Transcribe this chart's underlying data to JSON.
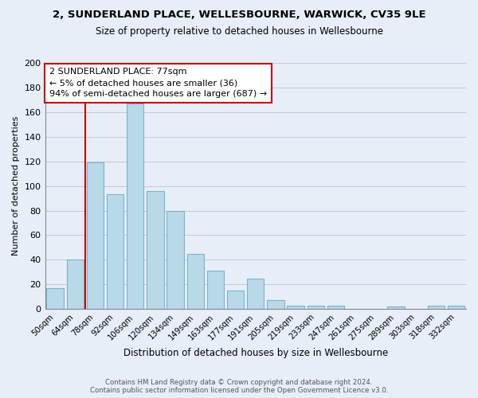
{
  "title": "2, SUNDERLAND PLACE, WELLESBOURNE, WARWICK, CV35 9LE",
  "subtitle": "Size of property relative to detached houses in Wellesbourne",
  "xlabel": "Distribution of detached houses by size in Wellesbourne",
  "ylabel": "Number of detached properties",
  "footer_line1": "Contains HM Land Registry data © Crown copyright and database right 2024.",
  "footer_line2": "Contains public sector information licensed under the Open Government Licence v3.0.",
  "bar_labels": [
    "50sqm",
    "64sqm",
    "78sqm",
    "92sqm",
    "106sqm",
    "120sqm",
    "134sqm",
    "149sqm",
    "163sqm",
    "177sqm",
    "191sqm",
    "205sqm",
    "219sqm",
    "233sqm",
    "247sqm",
    "261sqm",
    "275sqm",
    "289sqm",
    "303sqm",
    "318sqm",
    "332sqm"
  ],
  "bar_values": [
    17,
    40,
    119,
    93,
    167,
    96,
    80,
    45,
    31,
    15,
    25,
    7,
    3,
    3,
    3,
    0,
    0,
    2,
    0,
    3,
    3
  ],
  "bar_color": "#b8d9e8",
  "bar_edge_color": "#7ab4cc",
  "highlight_bar_index": 2,
  "vline_color": "#cc0000",
  "annotation_title": "2 SUNDERLAND PLACE: 77sqm",
  "annotation_line1": "← 5% of detached houses are smaller (36)",
  "annotation_line2": "94% of semi-detached houses are larger (687) →",
  "annotation_box_color": "#ffffff",
  "annotation_box_edge_color": "#cc0000",
  "ylim": [
    0,
    200
  ],
  "yticks": [
    0,
    20,
    40,
    60,
    80,
    100,
    120,
    140,
    160,
    180,
    200
  ],
  "bg_color": "#e8eef8",
  "plot_bg_color": "#e8eef8"
}
